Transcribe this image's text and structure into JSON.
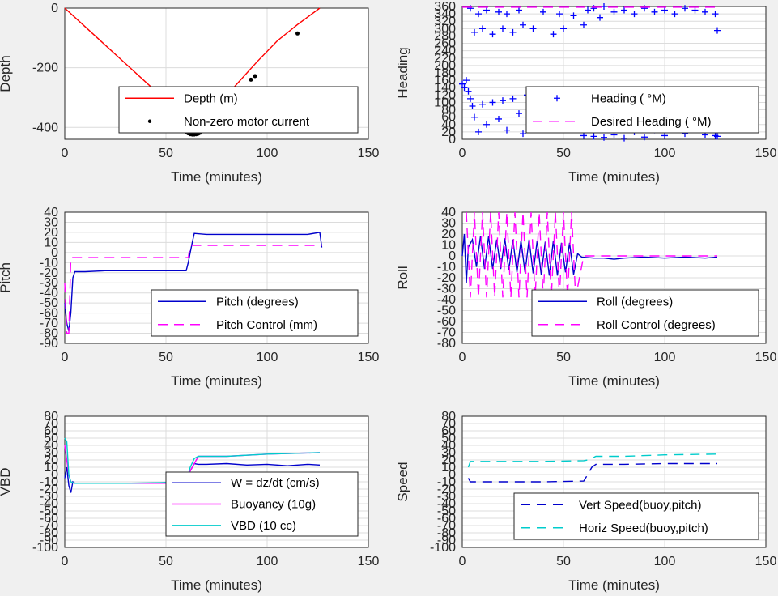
{
  "chart_data": [
    {
      "id": "depth",
      "type": "line",
      "xlabel": "Time (minutes)",
      "ylabel": "Depth",
      "xlim": [
        0,
        150
      ],
      "ylim": [
        -440,
        0
      ],
      "xticks": [
        "0",
        "50",
        "100",
        "150"
      ],
      "yticks": [
        "-400",
        "-200",
        "0"
      ],
      "grid": true,
      "legend_position": "bottom-right",
      "series": [
        {
          "name": "Depth (m)",
          "color": "#ff0000",
          "style": "solid",
          "x": [
            0,
            10,
            20,
            30,
            40,
            50,
            58,
            60,
            62,
            64,
            66,
            68,
            75,
            85,
            95,
            105,
            115,
            126
          ],
          "y": [
            0,
            -62,
            -124,
            -186,
            -248,
            -310,
            -360,
            -380,
            -405,
            -418,
            -405,
            -380,
            -330,
            -255,
            -180,
            -110,
            -55,
            0
          ]
        },
        {
          "name": "Non-zero motor current",
          "color": "#000000",
          "style": "marker",
          "x": [
            60,
            61,
            62,
            63,
            64,
            65,
            66,
            67,
            92,
            94,
            115
          ],
          "y": [
            -415,
            -420,
            -423,
            -424,
            -424,
            -423,
            -421,
            -418,
            -240,
            -228,
            -85
          ]
        }
      ]
    },
    {
      "id": "heading",
      "type": "scatter",
      "xlabel": "Time (minutes)",
      "ylabel": "Heading",
      "xlim": [
        0,
        150
      ],
      "ylim": [
        0,
        360
      ],
      "xticks": [
        "0",
        "50",
        "100",
        "150"
      ],
      "yticks": [
        "0",
        "20",
        "40",
        "60",
        "80",
        "100",
        "120",
        "140",
        "160",
        "180",
        "200",
        "220",
        "240",
        "260",
        "280",
        "300",
        "320",
        "340",
        "360"
      ],
      "grid": true,
      "legend_position": "bottom-right",
      "series": [
        {
          "name": "Heading ( °M)",
          "color": "#0000ff",
          "style": "plus-marker",
          "x": [
            0,
            1,
            2,
            3,
            4,
            5,
            6,
            8,
            10,
            12,
            15,
            18,
            20,
            22,
            25,
            28,
            30,
            32,
            35,
            38,
            40,
            42,
            45,
            48,
            50,
            55,
            58,
            60,
            65,
            70,
            75,
            80,
            85,
            90,
            95,
            100,
            105,
            110,
            115,
            120,
            125,
            126
          ],
          "y": [
            150,
            140,
            160,
            130,
            110,
            90,
            60,
            20,
            95,
            40,
            100,
            55,
            105,
            25,
            110,
            70,
            15,
            120,
            60,
            100,
            30,
            115,
            80,
            120,
            45,
            100,
            60,
            10,
            8,
            5,
            12,
            3,
            20,
            6,
            25,
            10,
            30,
            15,
            35,
            12,
            10,
            8
          ]
        },
        {
          "name": "Heading ( °M)",
          "color": "#0000ff",
          "style": "plus-marker",
          "x": [
            4,
            6,
            8,
            10,
            12,
            15,
            18,
            20,
            22,
            25,
            28,
            30,
            35,
            40,
            45,
            48,
            50,
            55,
            60,
            62,
            65,
            68,
            70,
            75,
            80,
            85,
            90,
            95,
            100,
            105,
            110,
            115,
            120,
            125,
            126
          ],
          "y": [
            355,
            290,
            340,
            300,
            350,
            285,
            345,
            300,
            340,
            290,
            350,
            310,
            300,
            345,
            285,
            340,
            300,
            335,
            310,
            350,
            355,
            330,
            360,
            345,
            350,
            340,
            355,
            345,
            350,
            340,
            355,
            350,
            345,
            340,
            295
          ]
        },
        {
          "name": "Desired Heading ( °M)",
          "color": "#ff00ff",
          "style": "dashed",
          "x": [
            0,
            20,
            40,
            60,
            80,
            100,
            120,
            126
          ],
          "y": [
            358,
            358,
            358,
            358,
            358,
            358,
            358,
            358
          ]
        }
      ]
    },
    {
      "id": "pitch",
      "type": "line",
      "xlabel": "Time (minutes)",
      "ylabel": "Pitch",
      "xlim": [
        0,
        150
      ],
      "ylim": [
        -90,
        40
      ],
      "xticks": [
        "0",
        "50",
        "100",
        "150"
      ],
      "yticks": [
        "-90",
        "-80",
        "-70",
        "-60",
        "-50",
        "-40",
        "-30",
        "-20",
        "-10",
        "0",
        "10",
        "20",
        "30",
        "40"
      ],
      "grid": true,
      "legend_position": "bottom-right",
      "series": [
        {
          "name": "Pitch (degrees)",
          "color": "#0000cc",
          "style": "solid",
          "x": [
            0,
            1,
            2,
            3,
            4,
            5,
            10,
            20,
            30,
            40,
            50,
            60,
            61,
            62,
            63,
            64,
            70,
            80,
            90,
            100,
            110,
            120,
            126,
            127
          ],
          "y": [
            -50,
            -70,
            -78,
            -60,
            -25,
            -19,
            -19,
            -18,
            -18,
            -18,
            -18,
            -18,
            -10,
            0,
            10,
            19,
            18,
            18,
            18,
            18,
            18,
            18,
            20,
            5
          ]
        },
        {
          "name": "Pitch Control (mm)",
          "color": "#ff00ff",
          "style": "dashed",
          "x": [
            0,
            1,
            2,
            3,
            4,
            60,
            61,
            62,
            63,
            127
          ],
          "y": [
            -30,
            -80,
            -80,
            -5,
            -5,
            -5,
            -5,
            7,
            7,
            7
          ]
        }
      ]
    },
    {
      "id": "roll",
      "type": "line",
      "xlabel": "Time (minutes)",
      "ylabel": "Roll",
      "xlim": [
        0,
        150
      ],
      "ylim": [
        -80,
        40
      ],
      "xticks": [
        "0",
        "50",
        "100",
        "150"
      ],
      "yticks": [
        "-80",
        "-70",
        "-60",
        "-50",
        "-40",
        "-30",
        "-20",
        "-10",
        "0",
        "10",
        "20",
        "30",
        "40"
      ],
      "grid": true,
      "legend_position": "bottom-right",
      "series": [
        {
          "name": "Roll (degrees)",
          "color": "#0000cc",
          "style": "solid",
          "x": [
            0,
            1,
            2,
            3,
            5,
            7,
            9,
            11,
            13,
            15,
            17,
            19,
            21,
            23,
            25,
            27,
            29,
            31,
            33,
            35,
            37,
            39,
            41,
            43,
            45,
            47,
            49,
            51,
            53,
            55,
            57,
            59,
            65,
            70,
            75,
            80,
            90,
            100,
            110,
            120,
            126
          ],
          "y": [
            0,
            20,
            -25,
            8,
            15,
            -10,
            18,
            -12,
            18,
            -12,
            15,
            -12,
            16,
            -13,
            15,
            -15,
            14,
            -15,
            15,
            -16,
            14,
            -17,
            13,
            -18,
            14,
            -18,
            12,
            -15,
            12,
            -17,
            2,
            -1,
            -2,
            -2,
            -3,
            -2,
            -1,
            -2,
            -1,
            -2,
            -1
          ]
        },
        {
          "name": "Roll Control (degrees)",
          "color": "#ff00ff",
          "style": "dashed",
          "x": [
            2,
            4,
            6,
            8,
            10,
            12,
            14,
            16,
            18,
            20,
            22,
            24,
            26,
            28,
            30,
            32,
            34,
            36,
            38,
            40,
            42,
            44,
            46,
            48,
            50,
            52,
            54,
            56,
            60,
            70,
            80,
            90,
            100,
            110,
            120,
            126
          ],
          "y": [
            40,
            -38,
            40,
            -38,
            40,
            -38,
            40,
            -38,
            40,
            -38,
            40,
            -38,
            40,
            -38,
            40,
            -38,
            40,
            -38,
            40,
            -38,
            40,
            -38,
            40,
            -38,
            40,
            -38,
            40,
            -38,
            0,
            0,
            0,
            0,
            0,
            0,
            0,
            0
          ]
        }
      ]
    },
    {
      "id": "vbd",
      "type": "line",
      "xlabel": "Time (minutes)",
      "ylabel": "VBD",
      "xlim": [
        0,
        150
      ],
      "ylim": [
        -100,
        80
      ],
      "xticks": [
        "0",
        "50",
        "100",
        "150"
      ],
      "yticks": [
        "-100",
        "-90",
        "-80",
        "-70",
        "-60",
        "-50",
        "-40",
        "-30",
        "-20",
        "-10",
        "0",
        "10",
        "20",
        "30",
        "40",
        "50",
        "60",
        "70",
        "80"
      ],
      "grid": true,
      "legend_position": "bottom-right",
      "series": [
        {
          "name": "W = dz/dt (cm/s)",
          "color": "#0000cc",
          "style": "solid",
          "x": [
            0,
            1,
            2,
            3,
            4,
            5,
            10,
            20,
            30,
            40,
            50,
            58,
            60,
            62,
            64,
            66,
            70,
            80,
            90,
            100,
            110,
            120,
            126
          ],
          "y": [
            -5,
            10,
            -15,
            -25,
            -10,
            -12,
            -12,
            -12,
            -12,
            -12,
            -11,
            -10,
            -8,
            5,
            15,
            14,
            14,
            15,
            13,
            14,
            12,
            14,
            13
          ]
        },
        {
          "name": "Buoyancy (10g)",
          "color": "#ff00ff",
          "style": "solid",
          "x": [
            0,
            2,
            3,
            5,
            30,
            60,
            62,
            66,
            80,
            100,
            126
          ],
          "y": [
            40,
            0,
            -10,
            -12,
            -12,
            -12,
            5,
            25,
            25,
            28,
            30
          ]
        },
        {
          "name": "VBD (10 cc)",
          "color": "#00cccc",
          "style": "solid",
          "x": [
            0,
            1,
            2,
            3,
            5,
            10,
            30,
            50,
            60,
            62,
            64,
            66,
            80,
            100,
            126
          ],
          "y": [
            50,
            45,
            0,
            -10,
            -12,
            -12,
            -12,
            -11,
            -10,
            10,
            22,
            25,
            25,
            28,
            30
          ]
        }
      ]
    },
    {
      "id": "speed",
      "type": "line",
      "xlabel": "Time (minutes)",
      "ylabel": "Speed",
      "xlim": [
        0,
        150
      ],
      "ylim": [
        -100,
        80
      ],
      "xticks": [
        "0",
        "50",
        "100",
        "150"
      ],
      "yticks": [
        "-100",
        "-90",
        "-80",
        "-70",
        "-60",
        "-50",
        "-40",
        "-30",
        "-20",
        "-10",
        "0",
        "10",
        "20",
        "30",
        "40",
        "50",
        "60",
        "70",
        "80"
      ],
      "grid": true,
      "legend_position": "bottom-right",
      "series": [
        {
          "name": "Vert Speed(buoy,pitch)",
          "color": "#0000cc",
          "style": "dashed",
          "x": [
            3,
            4,
            5,
            20,
            40,
            60,
            62,
            64,
            66,
            80,
            100,
            126
          ],
          "y": [
            -5,
            -10,
            -10,
            -10,
            -10,
            -9,
            0,
            10,
            14,
            14,
            15,
            15
          ]
        },
        {
          "name": "Horiz Speed(buoy,pitch)",
          "color": "#00cccc",
          "style": "dashed",
          "x": [
            3,
            4,
            5,
            20,
            40,
            60,
            62,
            64,
            66,
            80,
            100,
            126
          ],
          "y": [
            10,
            18,
            18,
            18,
            18,
            19,
            20,
            22,
            25,
            25,
            27,
            28
          ]
        }
      ]
    }
  ]
}
